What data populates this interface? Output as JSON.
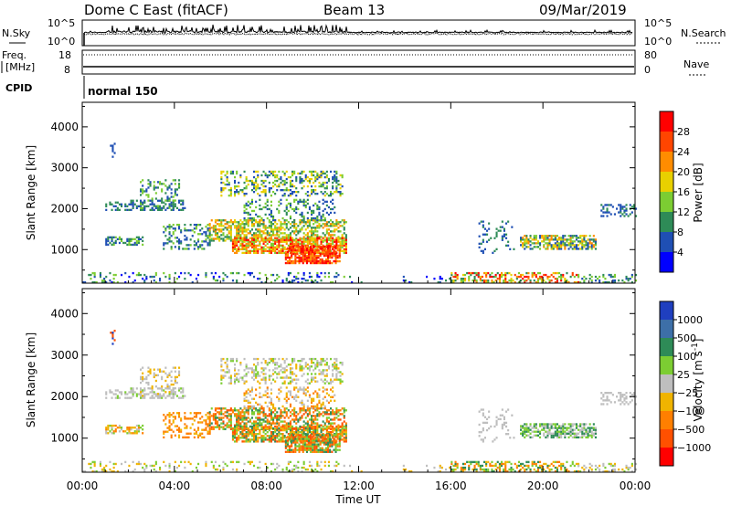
{
  "header": {
    "title": "Dome C East (fitACF)",
    "beam": "Beam 13",
    "date": "09/Mar/2019"
  },
  "chart_data": [
    {
      "type": "line",
      "panel": "noise",
      "left_label": "N.Sky",
      "right_label": "N.Search",
      "left_ticks": [
        "10^5",
        "10^0"
      ],
      "right_ticks": [
        "10^5",
        "10^0"
      ]
    },
    {
      "type": "line",
      "panel": "frequency",
      "left_label_1": "Freq.",
      "left_label_2": "[MHz]",
      "right_label": "Nave",
      "left_ticks": [
        "18",
        "8"
      ],
      "right_ticks": [
        "80",
        "0"
      ],
      "freq_ylim": [
        8,
        18
      ],
      "nave_ylim": [
        0,
        80
      ],
      "cpid_label": "CPID",
      "mode": "normal 150"
    },
    {
      "type": "heatmap",
      "panel": "power",
      "ylabel": "Slant Range [km]",
      "ylim": [
        180,
        4600
      ],
      "yticks": [
        1000,
        2000,
        3000,
        4000
      ],
      "colorbar_label": "Power [dB]",
      "colorbar_ticks": [
        "4",
        "8",
        "12",
        "16",
        "20",
        "24",
        "28"
      ],
      "colorbar_range": [
        0,
        32
      ],
      "colors": [
        "#0000ff",
        "#1f4fb4",
        "#2e8b57",
        "#7ccd32",
        "#e8d000",
        "#ff8c00",
        "#ff4500",
        "#ff0000"
      ]
    },
    {
      "type": "heatmap",
      "panel": "velocity",
      "ylabel": "Slant Range [km]",
      "ylim": [
        180,
        4600
      ],
      "yticks": [
        1000,
        2000,
        3000,
        4000
      ],
      "colorbar_label": "Velocity [m s",
      "colorbar_superscript": "-1",
      "colorbar_ticks": [
        "1000",
        "500",
        "100",
        "25",
        "−25",
        "−100",
        "−500",
        "−1000"
      ],
      "colors": [
        "#1f3fbf",
        "#3d6fa8",
        "#2e8b57",
        "#7ccd32",
        "#bebebe",
        "#f0b400",
        "#ff7f00",
        "#ff5000",
        "#ff0000"
      ]
    }
  ],
  "x_axis": {
    "label": "Time UT",
    "ticks": [
      "00:00",
      "04:00",
      "08:00",
      "12:00",
      "16:00",
      "20:00",
      "00:00"
    ]
  }
}
